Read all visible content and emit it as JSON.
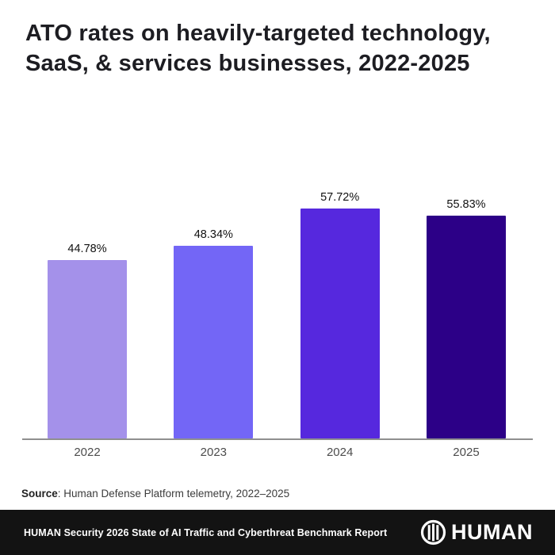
{
  "title": "ATO rates on heavily-targeted technology,\nSaaS, & services businesses, 2022-2025",
  "chart_data": {
    "type": "bar",
    "title": "ATO rates on heavily-targeted technology, SaaS, & services businesses, 2022-2025",
    "categories": [
      "2022",
      "2023",
      "2024",
      "2025"
    ],
    "values": [
      44.78,
      48.34,
      57.72,
      55.83
    ],
    "value_labels": [
      "44.78%",
      "48.34%",
      "57.72%",
      "55.83%"
    ],
    "bar_colors": [
      "#a491ea",
      "#7366f6",
      "#5628de",
      "#2c0087"
    ],
    "xlabel": "",
    "ylabel": "",
    "ylim": [
      0,
      62
    ],
    "grid": false,
    "legend": false,
    "value_label_position": "above-bar"
  },
  "source": {
    "label": "Source",
    "text": ": Human Defense Platform telemetry, 2022–2025"
  },
  "footer": {
    "report_title": "HUMAN Security 2026 State of AI Traffic and Cyberthreat Benchmark Report",
    "brand_name": "HUMAN",
    "logo_icon": "human-circle-barcode-icon",
    "background_color": "#131313"
  }
}
